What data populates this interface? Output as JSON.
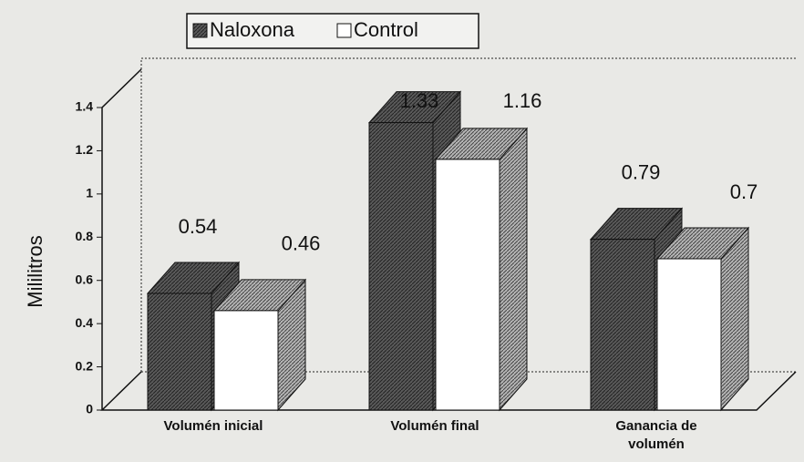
{
  "chart_data": {
    "type": "bar3d",
    "y_label": "Mililitros",
    "categories": [
      "Volumén inicial",
      "Volumén final",
      "Ganancia de volumén"
    ],
    "series": [
      {
        "name": "Naloxona",
        "color": "#707070",
        "values": [
          0.54,
          1.33,
          0.79
        ]
      },
      {
        "name": "Control",
        "color": "#ffffff",
        "values": [
          0.46,
          1.16,
          0.7
        ]
      }
    ],
    "ylim": [
      0,
      1.4
    ],
    "yticks": [
      0,
      0.2,
      0.4,
      0.6,
      0.8,
      1,
      1.2,
      1.4
    ],
    "legend": "top"
  }
}
